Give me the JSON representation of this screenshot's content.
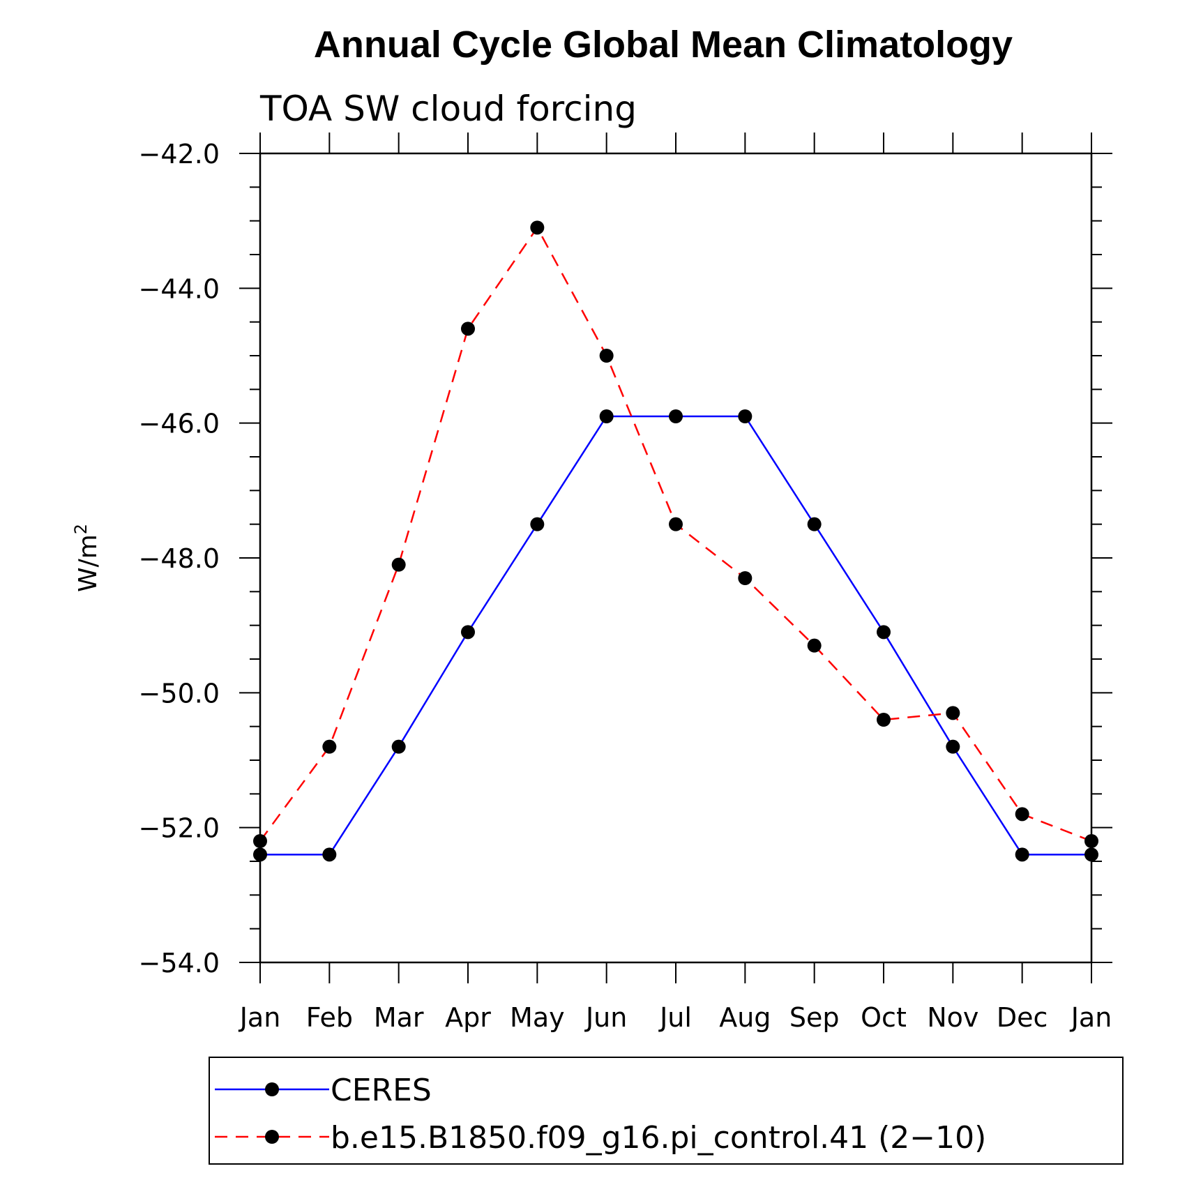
{
  "chart_data": {
    "type": "line",
    "title": "Annual Cycle Global Mean Climatology",
    "subtitle": "TOA SW cloud forcing",
    "ylabel_base": "W/m",
    "ylabel_sup": "2",
    "categories": [
      "Jan",
      "Feb",
      "Mar",
      "Apr",
      "May",
      "Jun",
      "Jul",
      "Aug",
      "Sep",
      "Oct",
      "Nov",
      "Dec",
      "Jan"
    ],
    "ylim": [
      -54.0,
      -42.0
    ],
    "yticks": [
      -54.0,
      -52.0,
      -50.0,
      -48.0,
      -46.0,
      -44.0,
      -42.0
    ],
    "ytick_labels": [
      "−54.0",
      "−52.0",
      "−50.0",
      "−48.0",
      "−46.0",
      "−44.0",
      "−42.0"
    ],
    "series": [
      {
        "name": "CERES",
        "color": "#0000ff",
        "style": "solid",
        "values": [
          -52.4,
          -52.4,
          -50.8,
          -49.1,
          -47.5,
          -45.9,
          -45.9,
          -45.9,
          -47.5,
          -49.1,
          -50.8,
          -52.4,
          -52.4
        ]
      },
      {
        "name": "b.e15.B1850.f09_g16.pi_control.41 (2−10)",
        "color": "#ff0000",
        "style": "dashed",
        "values": [
          -52.2,
          -50.8,
          -48.1,
          -44.6,
          -43.1,
          -45.0,
          -47.5,
          -48.3,
          -49.3,
          -50.4,
          -50.3,
          -51.8,
          -52.2
        ]
      }
    ],
    "grid": false,
    "legend_position": "bottom"
  }
}
